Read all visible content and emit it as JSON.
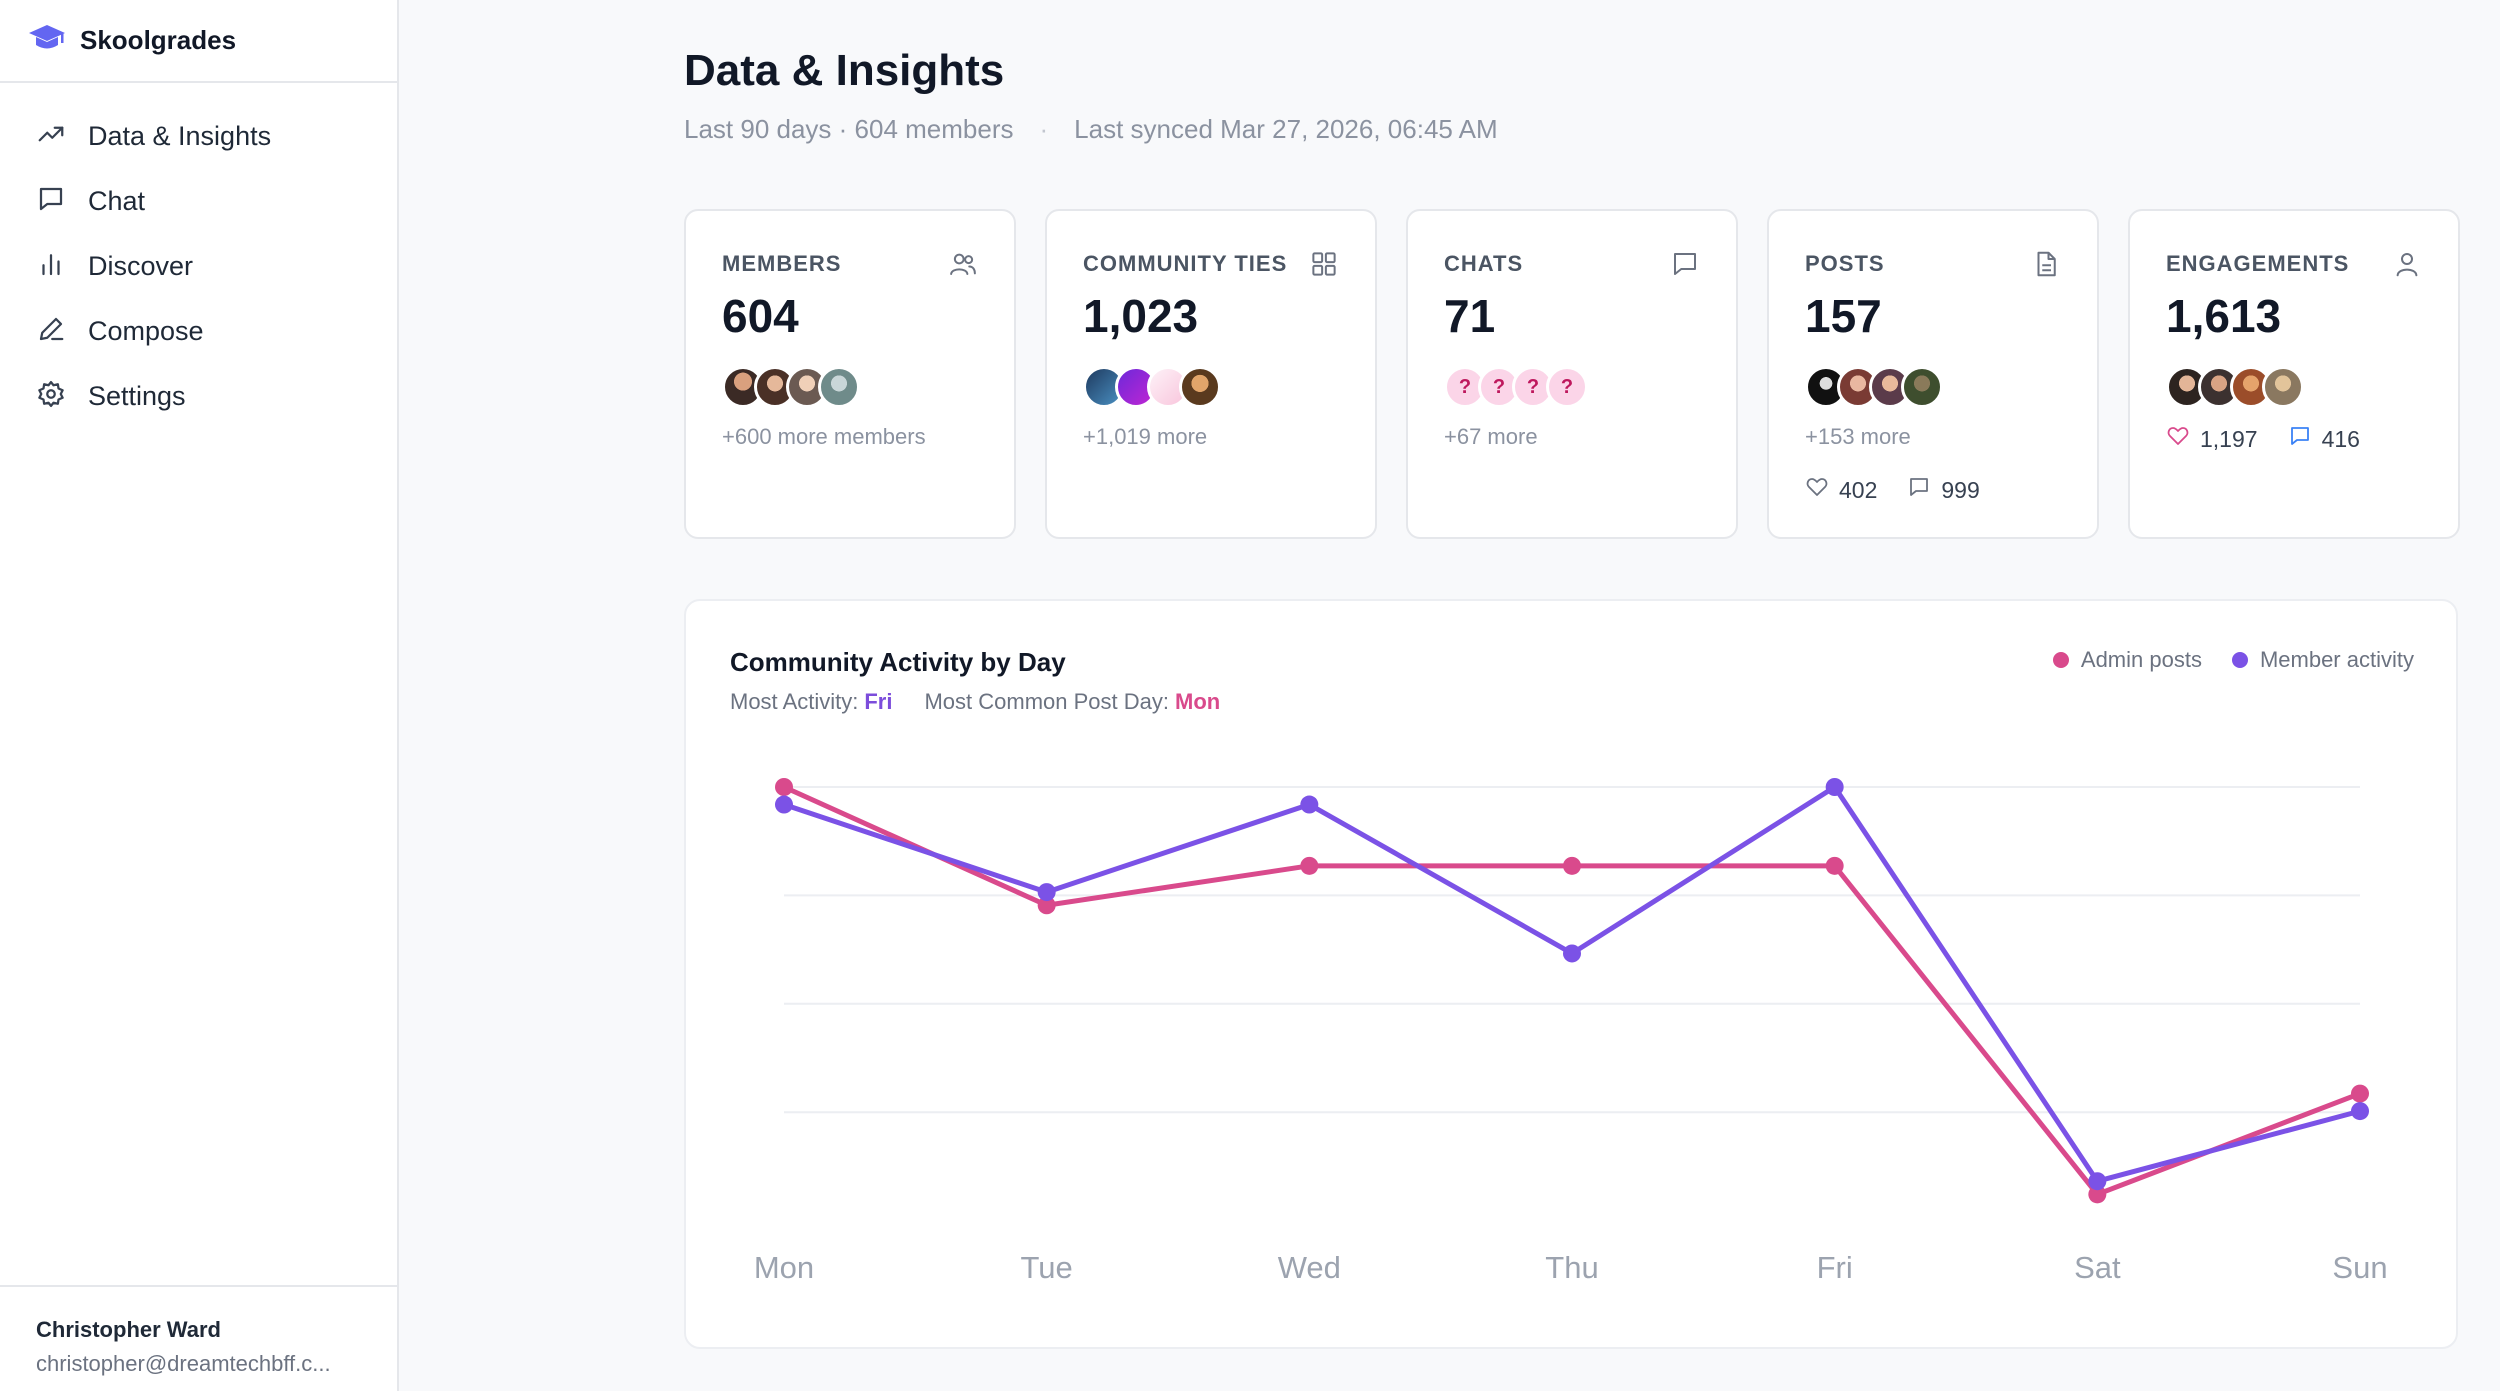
{
  "brand": {
    "name": "Skoolgrades",
    "accent": "#6366f1"
  },
  "sidebar": {
    "items": [
      {
        "label": "Data & Insights",
        "icon": "trending-up-icon"
      },
      {
        "label": "Chat",
        "icon": "chat-bubble-icon"
      },
      {
        "label": "Discover",
        "icon": "bar-chart-icon"
      },
      {
        "label": "Compose",
        "icon": "pen-icon"
      },
      {
        "label": "Settings",
        "icon": "gear-icon"
      }
    ]
  },
  "user": {
    "name": "Christopher Ward",
    "email": "christopher@dreamtechbff.c..."
  },
  "header": {
    "title": "Data & Insights",
    "range": "Last 90 days · 604 members",
    "sync": "Last synced Mar 27, 2026, 06:45 AM"
  },
  "cards": [
    {
      "label": "MEMBERS",
      "icon": "users-icon",
      "value": "604",
      "more": "+600 more members"
    },
    {
      "label": "COMMUNITY TIES",
      "icon": "grid-icon",
      "value": "1,023",
      "more": "+1,019 more"
    },
    {
      "label": "CHATS",
      "icon": "chat-bubble-icon",
      "value": "71",
      "more": "+67 more",
      "avatar_placeholder": "?"
    },
    {
      "label": "POSTS",
      "icon": "document-icon",
      "value": "157",
      "more": "+153 more",
      "likes": "402",
      "comments": "999"
    },
    {
      "label": "ENGAGEMENTS",
      "icon": "user-icon",
      "value": "1,613",
      "likes": "1,197",
      "comments": "416"
    }
  ],
  "chart": {
    "title": "Community Activity by Day",
    "most_activity_label": "Most Activity:",
    "most_activity_value": "Fri",
    "common_post_label": "Most Common Post Day:",
    "common_post_value": "Mon",
    "legend_admin": "Admin posts",
    "legend_member": "Member activity"
  },
  "chart_data": {
    "type": "line",
    "categories": [
      "Mon",
      "Tue",
      "Wed",
      "Thu",
      "Fri",
      "Sat",
      "Sun"
    ],
    "series": [
      {
        "name": "Admin posts",
        "color": "#d94a8c",
        "values": [
          1.0,
          0.73,
          0.82,
          0.82,
          0.82,
          0.07,
          0.3
        ]
      },
      {
        "name": "Member activity",
        "color": "#7b52e6",
        "values": [
          0.96,
          0.76,
          0.96,
          0.62,
          1.0,
          0.1,
          0.26
        ]
      }
    ],
    "ylim": [
      0,
      1
    ],
    "grid": true,
    "legend": "top-right"
  }
}
